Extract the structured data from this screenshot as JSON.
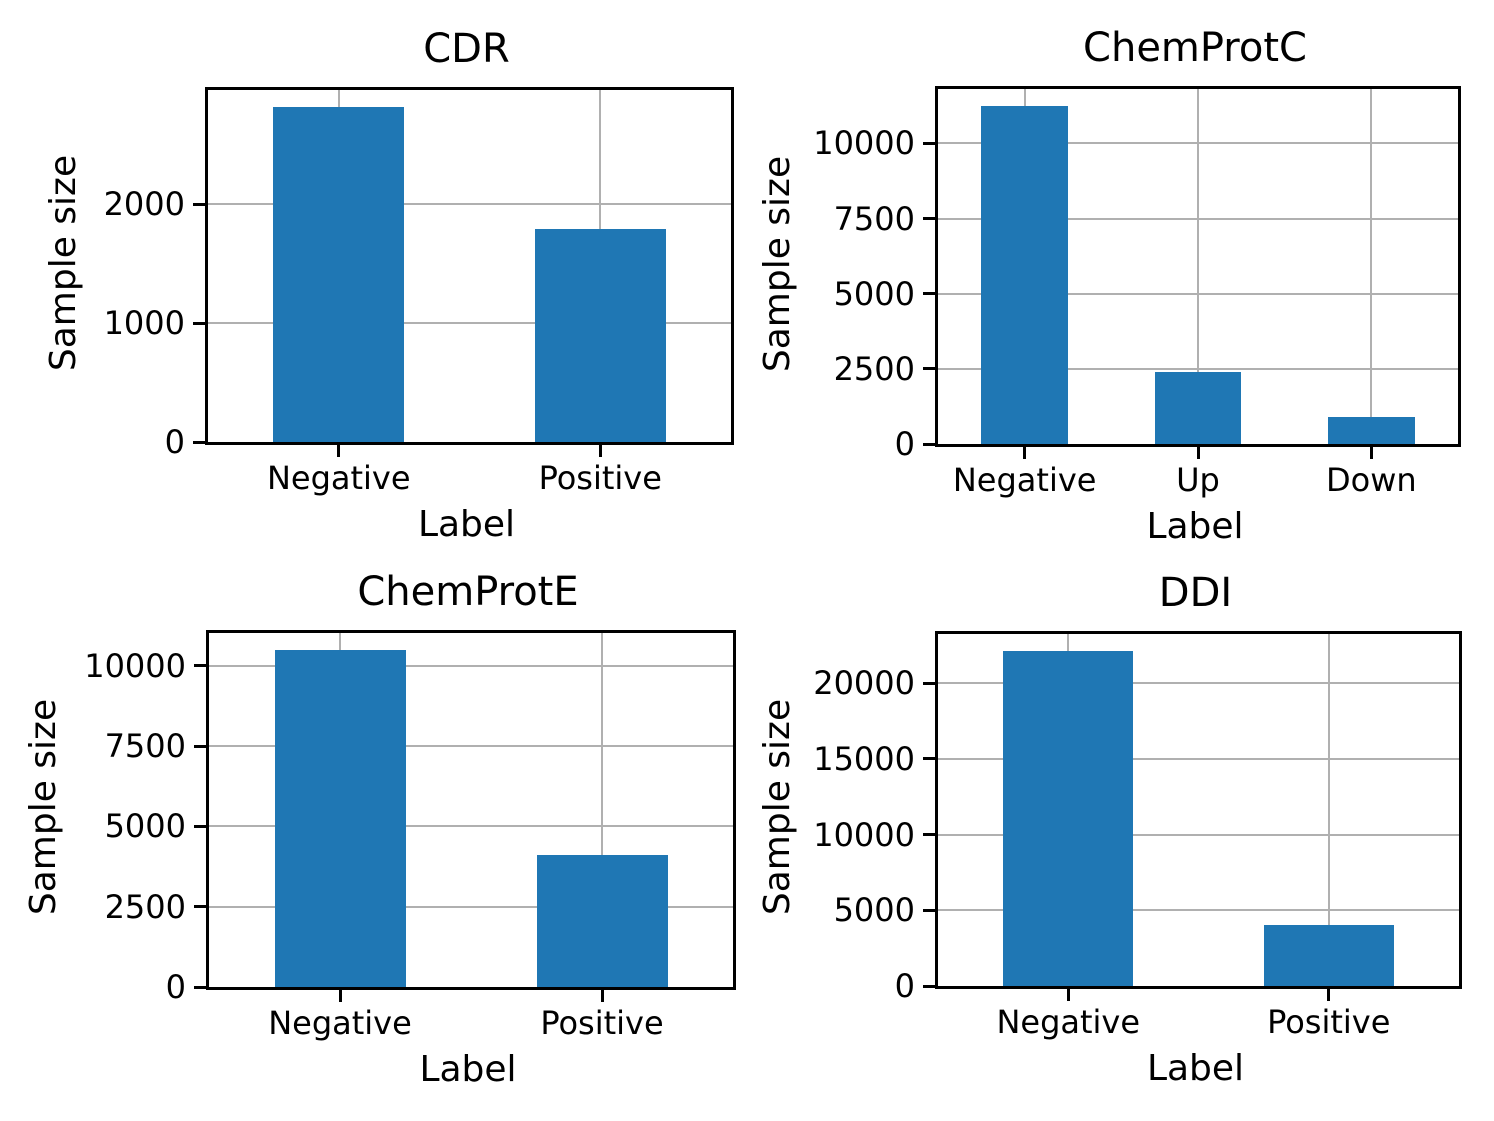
{
  "figure": {
    "background": "#ffffff"
  },
  "colors": {
    "bar": "#1f77b4",
    "grid": "#b0b0b0",
    "spine": "#000000",
    "text": "#000000",
    "background": "#ffffff"
  },
  "chart_data": [
    {
      "type": "bar",
      "title": "CDR",
      "xlabel": "Label",
      "ylabel": "Sample size",
      "categories": [
        "Negative",
        "Positive"
      ],
      "values": [
        2820,
        1790
      ],
      "yticks": [
        0,
        1000,
        2000
      ],
      "ylim": [
        0,
        2961
      ],
      "grid": true,
      "legend": false
    },
    {
      "type": "bar",
      "title": "ChemProtC",
      "xlabel": "Label",
      "ylabel": "Sample size",
      "categories": [
        "Negative",
        "Up",
        "Down"
      ],
      "values": [
        11250,
        2400,
        910
      ],
      "yticks": [
        0,
        2500,
        5000,
        7500,
        10000
      ],
      "ylim": [
        0,
        11813
      ],
      "grid": true,
      "legend": false
    },
    {
      "type": "bar",
      "title": "ChemProtE",
      "xlabel": "Label",
      "ylabel": "Sample size",
      "categories": [
        "Negative",
        "Positive"
      ],
      "values": [
        10500,
        4110
      ],
      "yticks": [
        0,
        2500,
        5000,
        7500,
        10000
      ],
      "ylim": [
        0,
        11025
      ],
      "grid": true,
      "legend": false
    },
    {
      "type": "bar",
      "title": "DDI",
      "xlabel": "Label",
      "ylabel": "Sample size",
      "categories": [
        "Negative",
        "Positive"
      ],
      "values": [
        22150,
        4000
      ],
      "yticks": [
        0,
        5000,
        10000,
        15000,
        20000
      ],
      "ylim": [
        0,
        23258
      ],
      "grid": true,
      "legend": false
    }
  ]
}
